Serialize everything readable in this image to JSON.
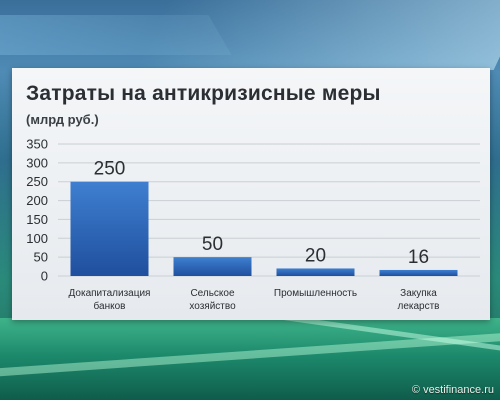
{
  "chart_data": {
    "type": "bar",
    "title": "Затраты на антикризисные меры",
    "ylabel": "(млрд руб.)",
    "xlabel": "",
    "ylim": [
      0,
      350
    ],
    "yticks": [
      "0",
      "50",
      "100",
      "150",
      "200",
      "250",
      "300",
      "350"
    ],
    "categories": [
      [
        "Докапитализация",
        "банков"
      ],
      [
        "Сельское",
        "хозяйство"
      ],
      [
        "Промышленность"
      ],
      [
        "Закупка",
        "лекарств"
      ]
    ],
    "values": [
      250,
      50,
      20,
      16
    ],
    "data_labels": [
      "250",
      "50",
      "20",
      "16"
    ],
    "grid": true,
    "colors": {
      "bar_top": "#3f7fd0",
      "bar_bottom": "#1f4f9e",
      "grid": "#c9cfd5",
      "text": "#2b2f33"
    }
  },
  "footer": {
    "source": "© vestifinance.ru"
  }
}
